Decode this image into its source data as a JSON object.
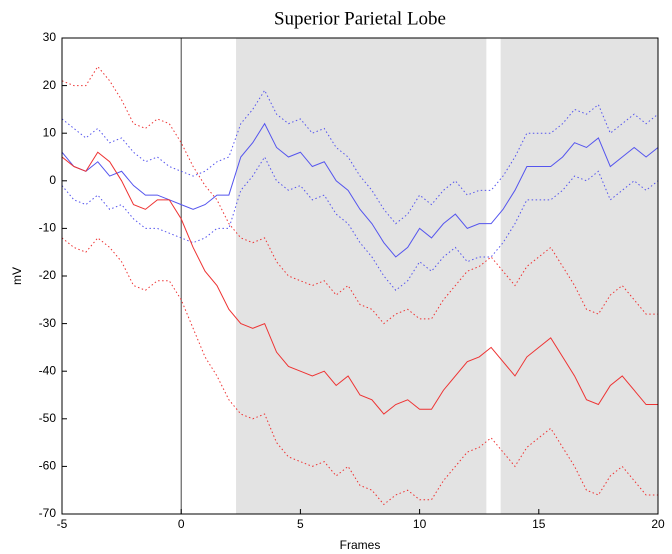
{
  "chart_data": {
    "type": "line",
    "title": "Superior Parietal Lobe",
    "xlabel": "Frames",
    "ylabel": "mV",
    "x": [
      -5,
      -4.5,
      -4,
      -3.5,
      -3,
      -2.5,
      -2,
      -1.5,
      -1,
      -0.5,
      0,
      0.5,
      1,
      1.5,
      2,
      2.5,
      3,
      3.5,
      4,
      4.5,
      5,
      5.5,
      6,
      6.5,
      7,
      7.5,
      8,
      8.5,
      9,
      9.5,
      10,
      10.5,
      11,
      11.5,
      12,
      12.5,
      13,
      13.5,
      14,
      14.5,
      15,
      15.5,
      16,
      16.5,
      17,
      17.5,
      18,
      18.5,
      19,
      19.5,
      20
    ],
    "series": [
      {
        "color": "#5555ee",
        "style": "solid",
        "values": [
          6,
          3,
          2,
          4,
          1,
          2,
          -1,
          -3,
          -3,
          -4,
          -5,
          -6,
          -5,
          -3,
          -3,
          5,
          8,
          12,
          7,
          5,
          6,
          3,
          4,
          0,
          -2,
          -6,
          -9,
          -13,
          -16,
          -14,
          -10,
          -12,
          -9,
          -7,
          -10,
          -9,
          -9,
          -6,
          -2,
          3,
          3,
          3,
          5,
          8,
          7,
          9,
          3,
          5,
          7,
          5,
          7
        ]
      },
      {
        "color": "#5555ee",
        "style": "dotted",
        "values": [
          13,
          11,
          9,
          11,
          8,
          9,
          6,
          4,
          5,
          3,
          2,
          1,
          2,
          4,
          5,
          12,
          15,
          19,
          14,
          12,
          13,
          10,
          11,
          7,
          5,
          1,
          -2,
          -6,
          -9,
          -7,
          -3,
          -5,
          -2,
          0,
          -3,
          -2,
          -2,
          1,
          5,
          10,
          10,
          10,
          12,
          15,
          14,
          16,
          10,
          12,
          14,
          12,
          14
        ]
      },
      {
        "color": "#5555ee",
        "style": "dotted",
        "values": [
          -1,
          -4,
          -5,
          -3,
          -6,
          -5,
          -8,
          -10,
          -10,
          -11,
          -12,
          -13,
          -12,
          -10,
          -10,
          -2,
          1,
          5,
          0,
          -2,
          -1,
          -4,
          -3,
          -7,
          -9,
          -13,
          -16,
          -20,
          -23,
          -21,
          -17,
          -19,
          -16,
          -14,
          -17,
          -16,
          -16,
          -13,
          -9,
          -4,
          -4,
          -4,
          -2,
          1,
          0,
          2,
          -4,
          -2,
          0,
          -2,
          0
        ]
      },
      {
        "color": "#ee3333",
        "style": "solid",
        "values": [
          5,
          3,
          2,
          6,
          4,
          0,
          -5,
          -6,
          -4,
          -4,
          -8,
          -14,
          -19,
          -22,
          -27,
          -30,
          -31,
          -30,
          -36,
          -39,
          -40,
          -41,
          -40,
          -43,
          -41,
          -45,
          -46,
          -49,
          -47,
          -46,
          -48,
          -48,
          -44,
          -41,
          -38,
          -37,
          -35,
          -38,
          -41,
          -37,
          -35,
          -33,
          -37,
          -41,
          -46,
          -47,
          -43,
          -41,
          -44,
          -47,
          -47
        ]
      },
      {
        "color": "#ee3333",
        "style": "dotted",
        "values": [
          21,
          20,
          20,
          24,
          21,
          17,
          12,
          11,
          13,
          12,
          8,
          3,
          -1,
          -4,
          -9,
          -12,
          -13,
          -12,
          -17,
          -20,
          -21,
          -22,
          -21,
          -24,
          -22,
          -26,
          -27,
          -30,
          -28,
          -27,
          -29,
          -29,
          -25,
          -22,
          -19,
          -18,
          -16,
          -19,
          -22,
          -18,
          -16,
          -14,
          -18,
          -22,
          -27,
          -28,
          -24,
          -22,
          -25,
          -28,
          -28
        ]
      },
      {
        "color": "#ee3333",
        "style": "dotted",
        "values": [
          -12,
          -14,
          -15,
          -12,
          -14,
          -17,
          -22,
          -23,
          -21,
          -21,
          -25,
          -31,
          -37,
          -41,
          -46,
          -49,
          -50,
          -49,
          -55,
          -58,
          -59,
          -60,
          -59,
          -62,
          -60,
          -64,
          -65,
          -68,
          -66,
          -65,
          -67,
          -67,
          -63,
          -60,
          -57,
          -56,
          -54,
          -57,
          -60,
          -56,
          -54,
          -52,
          -56,
          -60,
          -65,
          -66,
          -62,
          -60,
          -63,
          -66,
          -66
        ]
      }
    ],
    "shaded_regions": [
      [
        2.3,
        12.8
      ],
      [
        13.4,
        20
      ]
    ],
    "shade_color": "#e3e3e3",
    "vline": 0,
    "xlim": [
      -5,
      20
    ],
    "xticks": [
      -5,
      0,
      5,
      10,
      15,
      20
    ],
    "ylim": [
      -70,
      30
    ],
    "yticks": [
      30,
      20,
      10,
      0,
      -10,
      -20,
      -30,
      -40,
      -50,
      -60,
      -70
    ]
  }
}
